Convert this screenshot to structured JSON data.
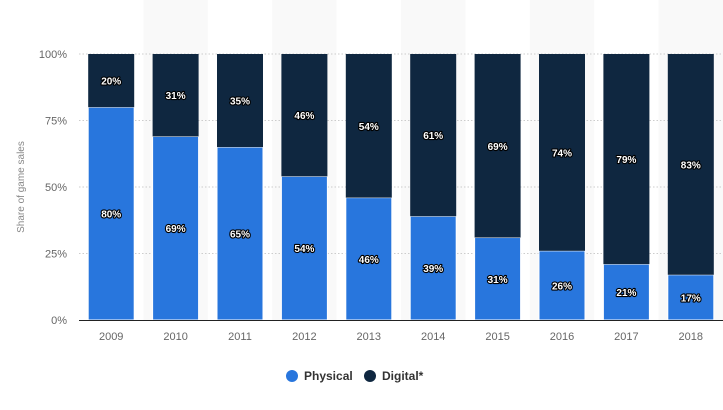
{
  "chart_data": {
    "type": "bar",
    "stacked": true,
    "title": "",
    "xlabel": "",
    "ylabel": "Share of game sales",
    "ylim": [
      0,
      100
    ],
    "yticks": [
      "0%",
      "25%",
      "50%",
      "75%",
      "100%"
    ],
    "ytick_values": [
      0,
      25,
      50,
      75,
      100
    ],
    "grid": true,
    "legend_position": "bottom",
    "categories": [
      "2009",
      "2010",
      "2011",
      "2012",
      "2013",
      "2014",
      "2015",
      "2016",
      "2017",
      "2018"
    ],
    "series": [
      {
        "name": "Physical",
        "color": "#2876dd",
        "values": [
          80,
          69,
          65,
          54,
          46,
          39,
          31,
          26,
          21,
          17
        ]
      },
      {
        "name": "Digital*",
        "color": "#0f2740",
        "values": [
          20,
          31,
          35,
          46,
          54,
          61,
          69,
          74,
          79,
          83
        ]
      }
    ]
  }
}
